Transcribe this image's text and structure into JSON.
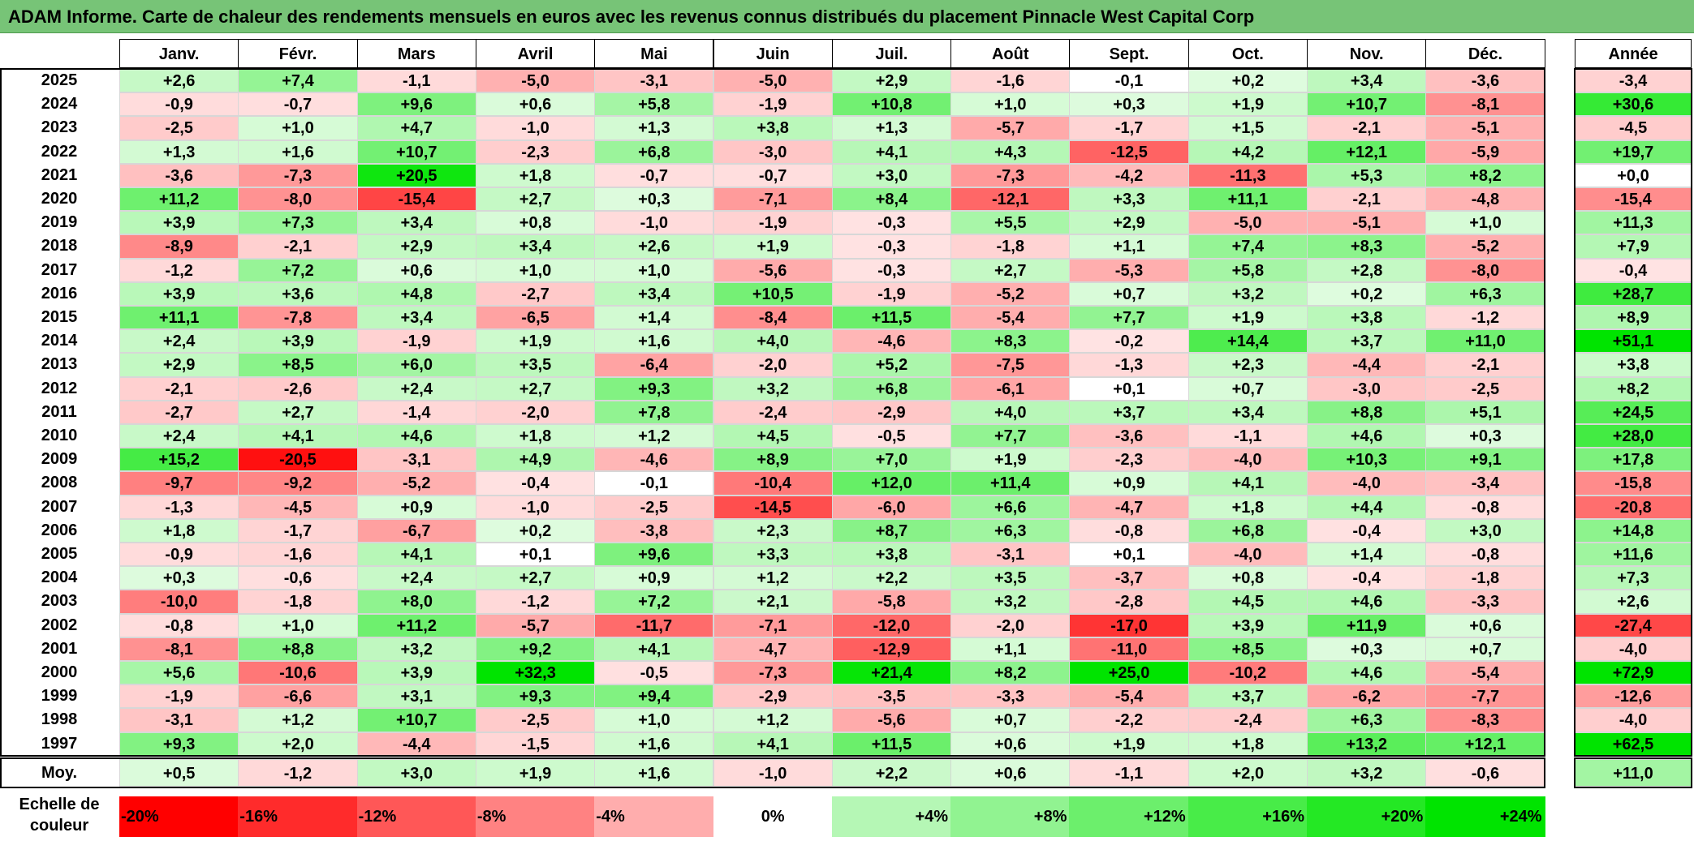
{
  "title": "ADAM Informe. Carte de chaleur des rendements mensuels en euros avec les revenus connus distribués du placement Pinnacle West Capital Corp",
  "chart_data": {
    "type": "heatmap",
    "title": "ADAM Informe. Carte de chaleur des rendements mensuels en euros avec les revenus connus distribués du placement Pinnacle West Capital Corp",
    "columns": [
      "Janv.",
      "Févr.",
      "Mars",
      "Avril",
      "Mai",
      "Juin",
      "Juil.",
      "Août",
      "Sept.",
      "Oct.",
      "Nov.",
      "Déc."
    ],
    "year_column_label": "Année",
    "rows": [
      {
        "year": "2025",
        "values": [
          2.6,
          7.4,
          -1.1,
          -5.0,
          -3.1,
          -5.0,
          2.9,
          -1.6,
          -0.1,
          0.2,
          3.4,
          -3.6
        ],
        "annual": -3.4
      },
      {
        "year": "2024",
        "values": [
          -0.9,
          -0.7,
          9.6,
          0.6,
          5.8,
          -1.9,
          10.8,
          1.0,
          0.3,
          1.9,
          10.7,
          -8.1
        ],
        "annual": 30.6
      },
      {
        "year": "2023",
        "values": [
          -2.5,
          1.0,
          4.7,
          -1.0,
          1.3,
          3.8,
          1.3,
          -5.7,
          -1.7,
          1.5,
          -2.1,
          -5.1
        ],
        "annual": -4.5
      },
      {
        "year": "2022",
        "values": [
          1.3,
          1.6,
          10.7,
          -2.3,
          6.8,
          -3.0,
          4.1,
          4.3,
          -12.5,
          4.2,
          12.1,
          -5.9
        ],
        "annual": 19.7
      },
      {
        "year": "2021",
        "values": [
          -3.6,
          -7.3,
          20.5,
          1.8,
          -0.7,
          -0.7,
          3.0,
          -7.3,
          -4.2,
          -11.3,
          5.3,
          8.2
        ],
        "annual": 0.0
      },
      {
        "year": "2020",
        "values": [
          11.2,
          -8.0,
          -15.4,
          2.7,
          0.3,
          -7.1,
          8.4,
          -12.1,
          3.3,
          11.1,
          -2.1,
          -4.8
        ],
        "annual": -15.4
      },
      {
        "year": "2019",
        "values": [
          3.9,
          7.3,
          3.4,
          0.8,
          -1.0,
          -1.9,
          -0.3,
          5.5,
          2.9,
          -5.0,
          -5.1,
          1.0
        ],
        "annual": 11.3
      },
      {
        "year": "2018",
        "values": [
          -8.9,
          -2.1,
          2.9,
          3.4,
          2.6,
          1.9,
          -0.3,
          -1.8,
          1.1,
          7.4,
          8.3,
          -5.2
        ],
        "annual": 7.9
      },
      {
        "year": "2017",
        "values": [
          -1.2,
          7.2,
          0.6,
          1.0,
          1.0,
          -5.6,
          -0.3,
          2.7,
          -5.3,
          5.8,
          2.8,
          -8.0
        ],
        "annual": -0.4
      },
      {
        "year": "2016",
        "values": [
          3.9,
          3.6,
          4.8,
          -2.7,
          3.4,
          10.5,
          -1.9,
          -5.2,
          0.7,
          3.2,
          0.2,
          6.3
        ],
        "annual": 28.7
      },
      {
        "year": "2015",
        "values": [
          11.1,
          -7.8,
          3.4,
          -6.5,
          1.4,
          -8.4,
          11.5,
          -5.4,
          7.7,
          1.9,
          3.8,
          -1.2
        ],
        "annual": 8.9
      },
      {
        "year": "2014",
        "values": [
          2.4,
          3.9,
          -1.9,
          1.9,
          1.6,
          4.0,
          -4.6,
          8.3,
          -0.2,
          14.4,
          3.7,
          11.0
        ],
        "annual": 51.1
      },
      {
        "year": "2013",
        "values": [
          2.9,
          8.5,
          6.0,
          3.5,
          -6.4,
          -2.0,
          5.2,
          -7.5,
          -1.3,
          2.3,
          -4.4,
          -2.1
        ],
        "annual": 3.8
      },
      {
        "year": "2012",
        "values": [
          -2.1,
          -2.6,
          2.4,
          2.7,
          9.3,
          3.2,
          6.8,
          -6.1,
          0.1,
          0.7,
          -3.0,
          -2.5
        ],
        "annual": 8.2
      },
      {
        "year": "2011",
        "values": [
          -2.7,
          2.7,
          -1.4,
          -2.0,
          7.8,
          -2.4,
          -2.9,
          4.0,
          3.7,
          3.4,
          8.8,
          5.1
        ],
        "annual": 24.5
      },
      {
        "year": "2010",
        "values": [
          2.4,
          4.1,
          4.6,
          1.8,
          1.2,
          4.5,
          -0.5,
          7.7,
          -3.6,
          -1.1,
          4.6,
          0.3
        ],
        "annual": 28.0
      },
      {
        "year": "2009",
        "values": [
          15.2,
          -20.5,
          -3.1,
          4.9,
          -4.6,
          8.9,
          7.0,
          1.9,
          -2.3,
          -4.0,
          10.3,
          9.1
        ],
        "annual": 17.8
      },
      {
        "year": "2008",
        "values": [
          -9.7,
          -9.2,
          -5.2,
          -0.4,
          -0.1,
          -10.4,
          12.0,
          11.4,
          0.9,
          4.1,
          -4.0,
          -3.4
        ],
        "annual": -15.8
      },
      {
        "year": "2007",
        "values": [
          -1.3,
          -4.5,
          0.9,
          -1.0,
          -2.5,
          -14.5,
          -6.0,
          6.6,
          -4.7,
          1.8,
          4.4,
          -0.8
        ],
        "annual": -20.8
      },
      {
        "year": "2006",
        "values": [
          1.8,
          -1.7,
          -6.7,
          0.2,
          -3.8,
          2.3,
          8.7,
          6.3,
          -0.8,
          6.8,
          -0.4,
          3.0
        ],
        "annual": 14.8
      },
      {
        "year": "2005",
        "values": [
          -0.9,
          -1.6,
          4.1,
          0.1,
          9.6,
          3.3,
          3.8,
          -3.1,
          0.1,
          -4.0,
          1.4,
          -0.8
        ],
        "annual": 11.6
      },
      {
        "year": "2004",
        "values": [
          0.3,
          -0.6,
          2.4,
          2.7,
          0.9,
          1.2,
          2.2,
          3.5,
          -3.7,
          0.8,
          -0.4,
          -1.8
        ],
        "annual": 7.3
      },
      {
        "year": "2003",
        "values": [
          -10.0,
          -1.8,
          8.0,
          -1.2,
          7.2,
          2.1,
          -5.8,
          3.2,
          -2.8,
          4.5,
          4.6,
          -3.3
        ],
        "annual": 2.6
      },
      {
        "year": "2002",
        "values": [
          -0.8,
          1.0,
          11.2,
          -5.7,
          -11.7,
          -7.1,
          -12.0,
          -2.0,
          -17.0,
          3.9,
          11.9,
          0.6
        ],
        "annual": -27.4
      },
      {
        "year": "2001",
        "values": [
          -8.1,
          8.8,
          3.2,
          9.2,
          4.1,
          -4.7,
          -12.9,
          1.1,
          -11.0,
          8.5,
          0.3,
          0.7
        ],
        "annual": -4.0
      },
      {
        "year": "2000",
        "values": [
          5.6,
          -10.6,
          3.9,
          32.3,
          -0.5,
          -7.3,
          21.4,
          8.2,
          25.0,
          -10.2,
          4.6,
          -5.4
        ],
        "annual": 72.9
      },
      {
        "year": "1999",
        "values": [
          -1.9,
          -6.6,
          3.1,
          9.3,
          9.4,
          -2.9,
          -3.5,
          -3.3,
          -5.4,
          3.7,
          -6.2,
          -7.7
        ],
        "annual": -12.6
      },
      {
        "year": "1998",
        "values": [
          -3.1,
          1.2,
          10.7,
          -2.5,
          1.0,
          1.2,
          -5.6,
          0.7,
          -2.2,
          -2.4,
          6.3,
          -8.3
        ],
        "annual": -4.0
      },
      {
        "year": "1997",
        "values": [
          9.3,
          2.0,
          -4.4,
          -1.5,
          1.6,
          4.1,
          11.5,
          0.6,
          1.9,
          1.8,
          13.2,
          12.1
        ],
        "annual": 62.5
      }
    ],
    "average": {
      "label": "Moy.",
      "values": [
        0.5,
        -1.2,
        3.0,
        1.9,
        1.6,
        -1.0,
        2.2,
        0.6,
        -1.1,
        2.0,
        3.2,
        -0.6
      ],
      "annual": 11.0
    },
    "color_scale": {
      "label": "Echelle de couleur",
      "stops": [
        "-20%",
        "-16%",
        "-12%",
        "-8%",
        "-4%",
        "0%",
        "+4%",
        "+8%",
        "+12%",
        "+16%",
        "+20%",
        "+24%"
      ],
      "negative_color": "#ff0000",
      "positive_color": "#00e400",
      "neutral_color": "#ffffff"
    }
  }
}
